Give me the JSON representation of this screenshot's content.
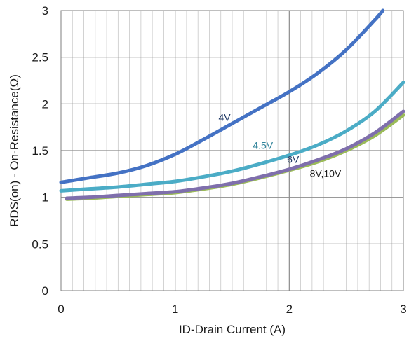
{
  "chart_data": {
    "type": "line",
    "xlabel": "ID-Drain Current (A)",
    "ylabel": "RDS(on) - On-Resistance(Ω)",
    "xlim": [
      0,
      3
    ],
    "ylim": [
      0,
      3
    ],
    "x_ticks": [
      "0",
      "1",
      "2",
      "3"
    ],
    "y_ticks": [
      "0",
      "0.5",
      "1",
      "1.5",
      "2",
      "2.5",
      "3"
    ],
    "grid": true,
    "series": [
      {
        "name": "4V",
        "color": "#4472c4",
        "label_color": "#1f3864",
        "label_at": [
          1.38,
          1.82
        ],
        "x": [
          0.0,
          0.25,
          0.5,
          0.75,
          1.0,
          1.25,
          1.5,
          1.75,
          2.0,
          2.25,
          2.5,
          2.75,
          2.82
        ],
        "y": [
          1.16,
          1.21,
          1.26,
          1.34,
          1.46,
          1.62,
          1.79,
          1.96,
          2.13,
          2.33,
          2.58,
          2.9,
          3.0
        ]
      },
      {
        "name": "4.5V",
        "color": "#4bacc6",
        "label_color": "#31849b",
        "label_at": [
          1.68,
          1.52
        ],
        "x": [
          0.0,
          0.25,
          0.5,
          0.75,
          1.0,
          1.25,
          1.5,
          1.75,
          2.0,
          2.25,
          2.5,
          2.75,
          3.0
        ],
        "y": [
          1.07,
          1.09,
          1.11,
          1.14,
          1.17,
          1.22,
          1.28,
          1.36,
          1.45,
          1.56,
          1.71,
          1.92,
          2.23
        ]
      },
      {
        "name": "6V",
        "color": "#7f6fac",
        "label_color": "#1f3864",
        "label_at": [
          1.98,
          1.37
        ],
        "x": [
          0.05,
          0.25,
          0.5,
          0.75,
          1.0,
          1.25,
          1.5,
          1.75,
          2.0,
          2.25,
          2.5,
          2.75,
          3.0
        ],
        "y": [
          0.99,
          1.0,
          1.02,
          1.04,
          1.06,
          1.1,
          1.15,
          1.22,
          1.3,
          1.4,
          1.52,
          1.69,
          1.92
        ]
      },
      {
        "name": "8V,10V",
        "color": "#9bbb59",
        "label_color": "#1a1a1a",
        "label_at": [
          2.18,
          1.22
        ],
        "x": [
          0.05,
          0.25,
          0.5,
          0.75,
          1.0,
          1.25,
          1.5,
          1.75,
          2.0,
          2.25,
          2.5,
          2.75,
          3.0
        ],
        "y": [
          0.98,
          0.99,
          1.01,
          1.03,
          1.05,
          1.09,
          1.14,
          1.21,
          1.29,
          1.38,
          1.5,
          1.66,
          1.88
        ]
      }
    ]
  }
}
